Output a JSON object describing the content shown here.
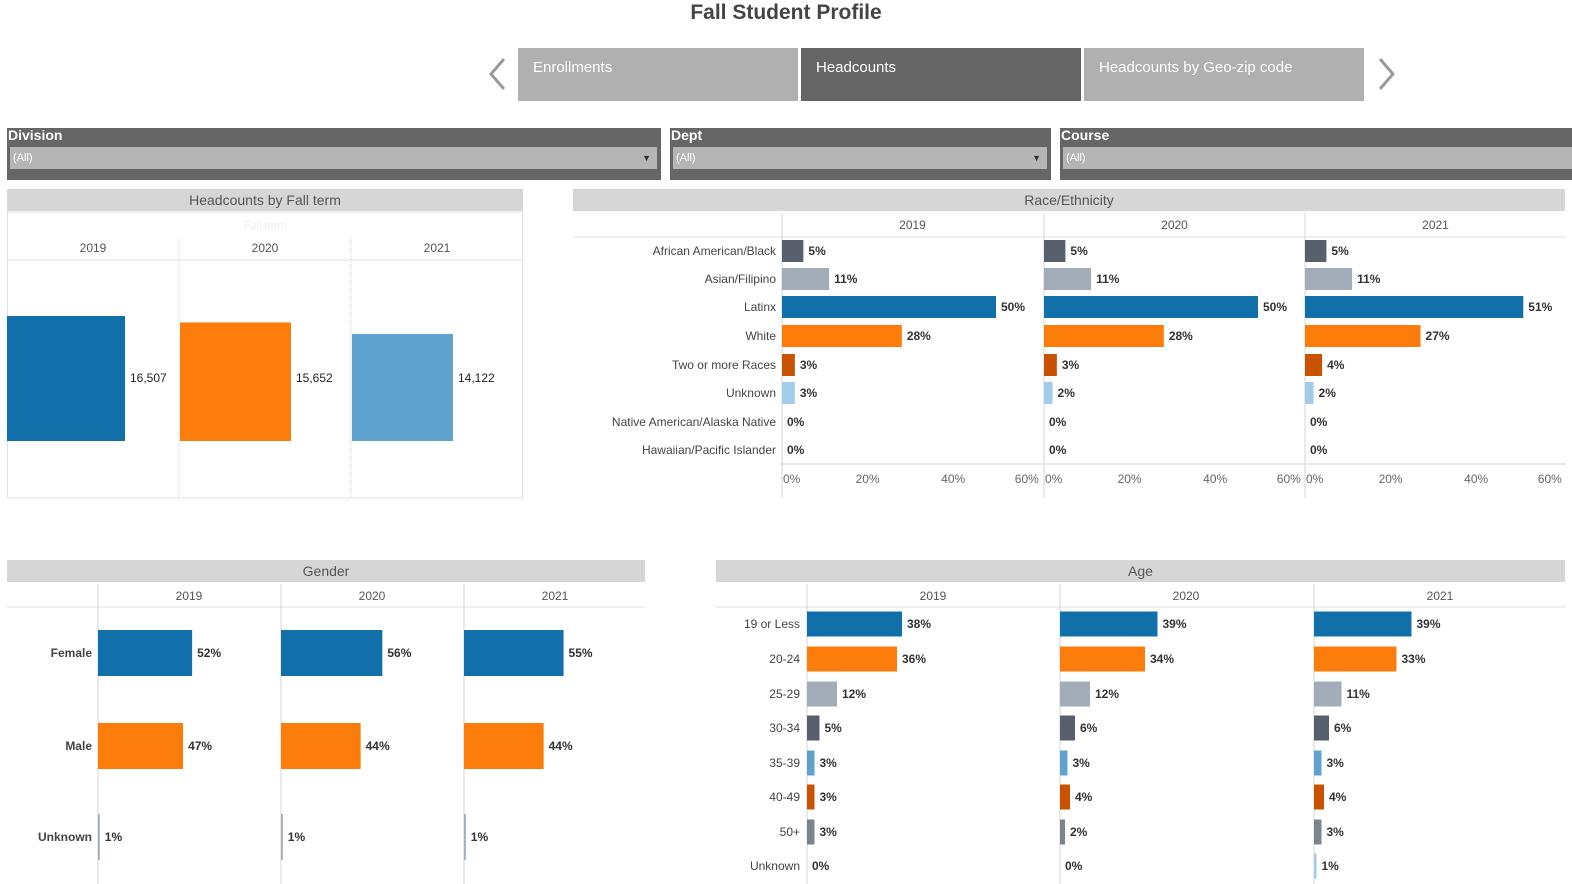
{
  "page": {
    "title": "Fall Student Profile"
  },
  "tabs": [
    {
      "label": "Enrollments",
      "active": false
    },
    {
      "label": "Headcounts",
      "active": true
    },
    {
      "label": "Headcounts by Geo-zip code",
      "active": false
    }
  ],
  "filters": {
    "division": {
      "label": "Division",
      "value": "(All)"
    },
    "dept": {
      "label": "Dept",
      "value": "(All)"
    },
    "course": {
      "label": "Course",
      "value": "(All)"
    }
  },
  "panels": {
    "headcounts_title": "Headcounts by Fall term",
    "headcounts_header": "Fall term",
    "race_title": "Race/Ethnicity",
    "gender_title": "Gender",
    "age_title": "Age"
  },
  "chart_data": [
    {
      "id": "headcounts",
      "type": "bar",
      "title": "Headcounts by Fall term",
      "column_header": "Fall term",
      "categories": [
        "2019",
        "2020",
        "2021"
      ],
      "values": [
        16507,
        15652,
        14122
      ],
      "labels": [
        "16,507",
        "15,652",
        "14,122"
      ],
      "colors": [
        "#1170aa",
        "#fc7d0b",
        "#5fa2ce"
      ],
      "ylim": [
        0,
        18000
      ]
    },
    {
      "id": "race",
      "type": "bar",
      "orientation": "horizontal",
      "title": "Race/Ethnicity",
      "categories": [
        "African American/Black",
        "Asian/Filipino",
        "Latinx",
        "White",
        "Two or more Races",
        "Unknown",
        "Native American/Alaska Native",
        "Hawaiian/Pacific Islander"
      ],
      "colors": [
        "#57606c",
        "#a3acb9",
        "#1170aa",
        "#fc7d0b",
        "#c85200",
        "#a3cce9",
        "#7b848f",
        "#c8d0d9"
      ],
      "xlim": [
        0,
        60
      ],
      "xticks": [
        "0%",
        "20%",
        "40%",
        "60%"
      ],
      "series": [
        {
          "name": "2019",
          "values": [
            5,
            11,
            50,
            28,
            3,
            3,
            0,
            0
          ]
        },
        {
          "name": "2020",
          "values": [
            5,
            11,
            50,
            28,
            3,
            2,
            0,
            0
          ]
        },
        {
          "name": "2021",
          "values": [
            5,
            11,
            51,
            27,
            4,
            2,
            0,
            0
          ]
        }
      ]
    },
    {
      "id": "gender",
      "type": "bar",
      "orientation": "horizontal",
      "title": "Gender",
      "categories": [
        "Female",
        "Male",
        "Unknown"
      ],
      "colors": [
        "#1170aa",
        "#fc7d0b",
        "#a3acb9"
      ],
      "xlim": [
        0,
        100
      ],
      "series": [
        {
          "name": "2019",
          "values": [
            52,
            47,
            1
          ]
        },
        {
          "name": "2020",
          "values": [
            56,
            44,
            1
          ]
        },
        {
          "name": "2021",
          "values": [
            55,
            44,
            1
          ]
        }
      ]
    },
    {
      "id": "age",
      "type": "bar",
      "orientation": "horizontal",
      "title": "Age",
      "categories": [
        "19 or Less",
        "20-24",
        "25-29",
        "30-34",
        "35-39",
        "40-49",
        "50+",
        "Unknown"
      ],
      "colors": [
        "#1170aa",
        "#fc7d0b",
        "#a3acb9",
        "#57606c",
        "#5fa2ce",
        "#c85200",
        "#7b848f",
        "#a3cce9"
      ],
      "xlim": [
        0,
        100
      ],
      "series": [
        {
          "name": "2019",
          "values": [
            38,
            36,
            12,
            5,
            3,
            3,
            3,
            0
          ]
        },
        {
          "name": "2020",
          "values": [
            39,
            34,
            12,
            6,
            3,
            4,
            2,
            0
          ]
        },
        {
          "name": "2021",
          "values": [
            39,
            33,
            11,
            6,
            3,
            4,
            3,
            1
          ]
        }
      ]
    }
  ]
}
